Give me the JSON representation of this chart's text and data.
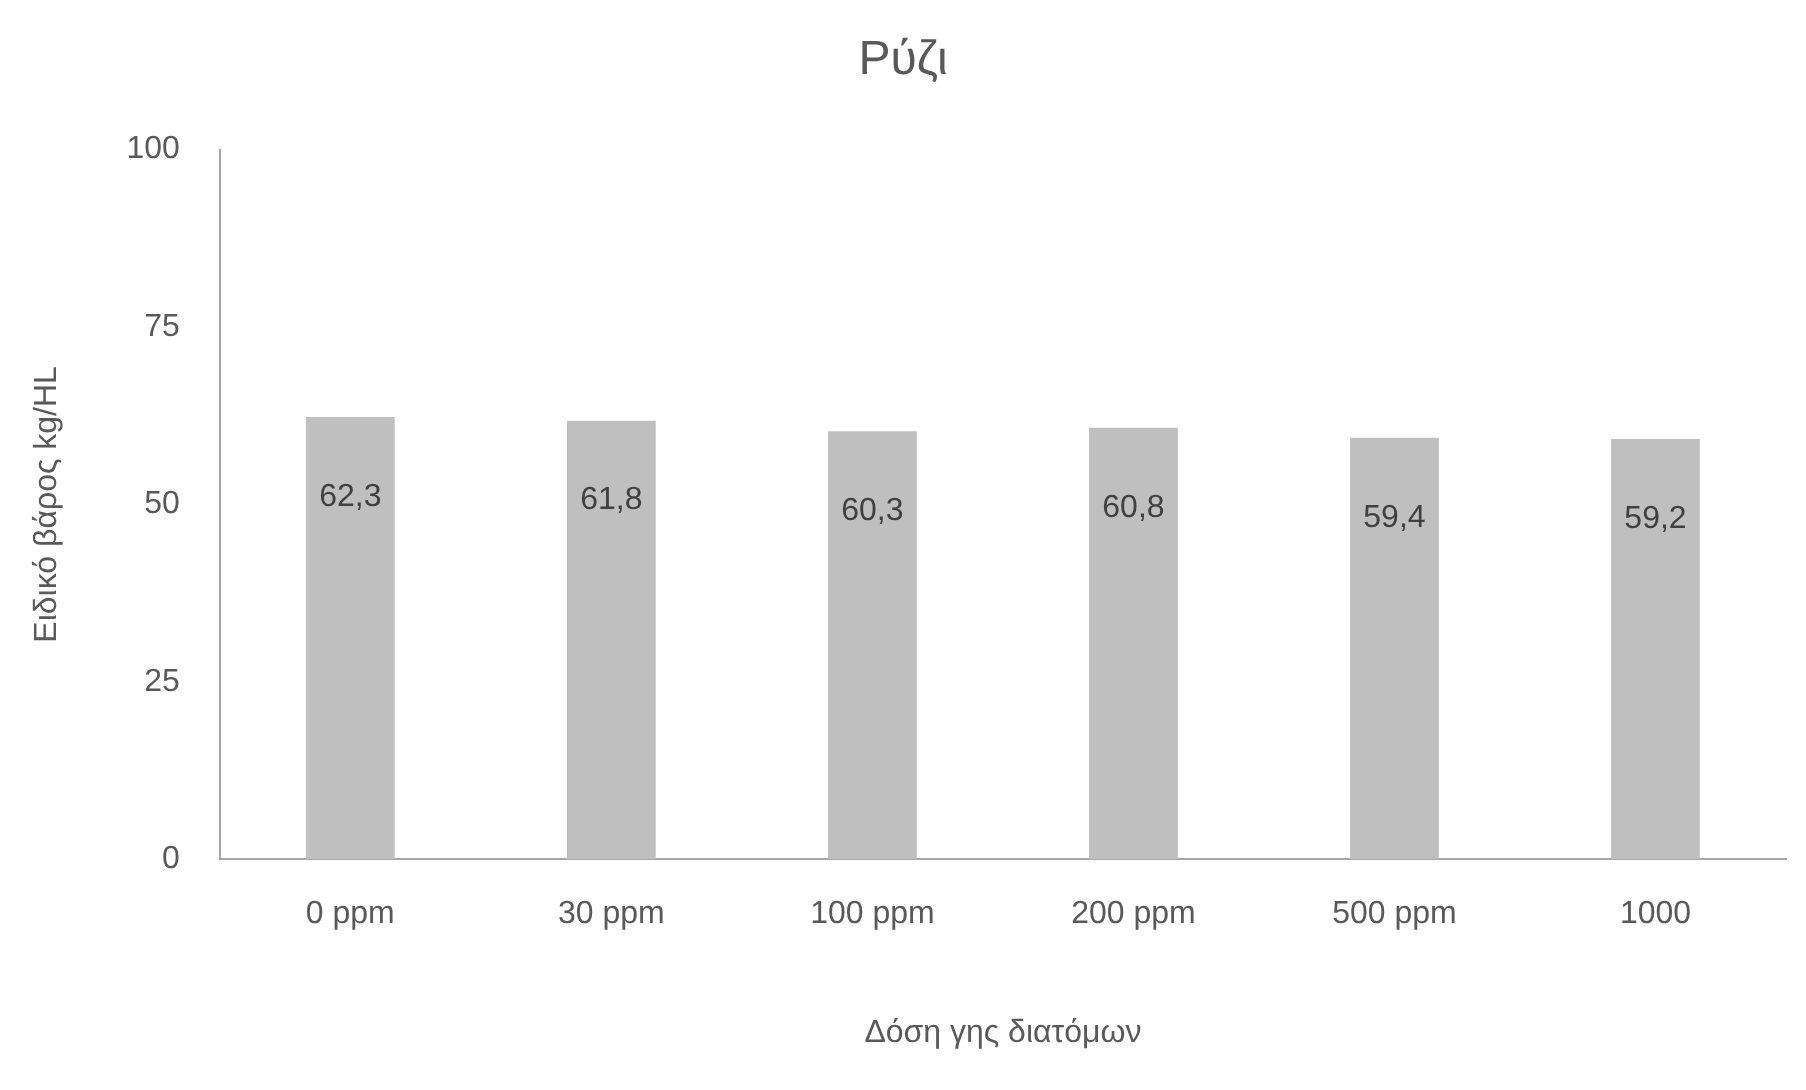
{
  "chart_data": {
    "type": "bar",
    "title": "Ρύζι",
    "xlabel": "Δόση γης διατόμων",
    "ylabel": "Ειδικό βάρος kg/HL",
    "categories": [
      "0 ppm",
      "30 ppm",
      "100 ppm",
      "200 ppm",
      "500 ppm",
      "1000"
    ],
    "values": [
      62.3,
      61.8,
      60.3,
      60.8,
      59.4,
      59.2
    ],
    "value_labels": [
      "62,3",
      "61,8",
      "60,3",
      "60,8",
      "59,4",
      "59,2"
    ],
    "color": "#bfbfbf",
    "ylim": [
      0,
      100
    ],
    "yticks": [
      0,
      25,
      50,
      75,
      100
    ],
    "grid": false,
    "legend": false
  }
}
